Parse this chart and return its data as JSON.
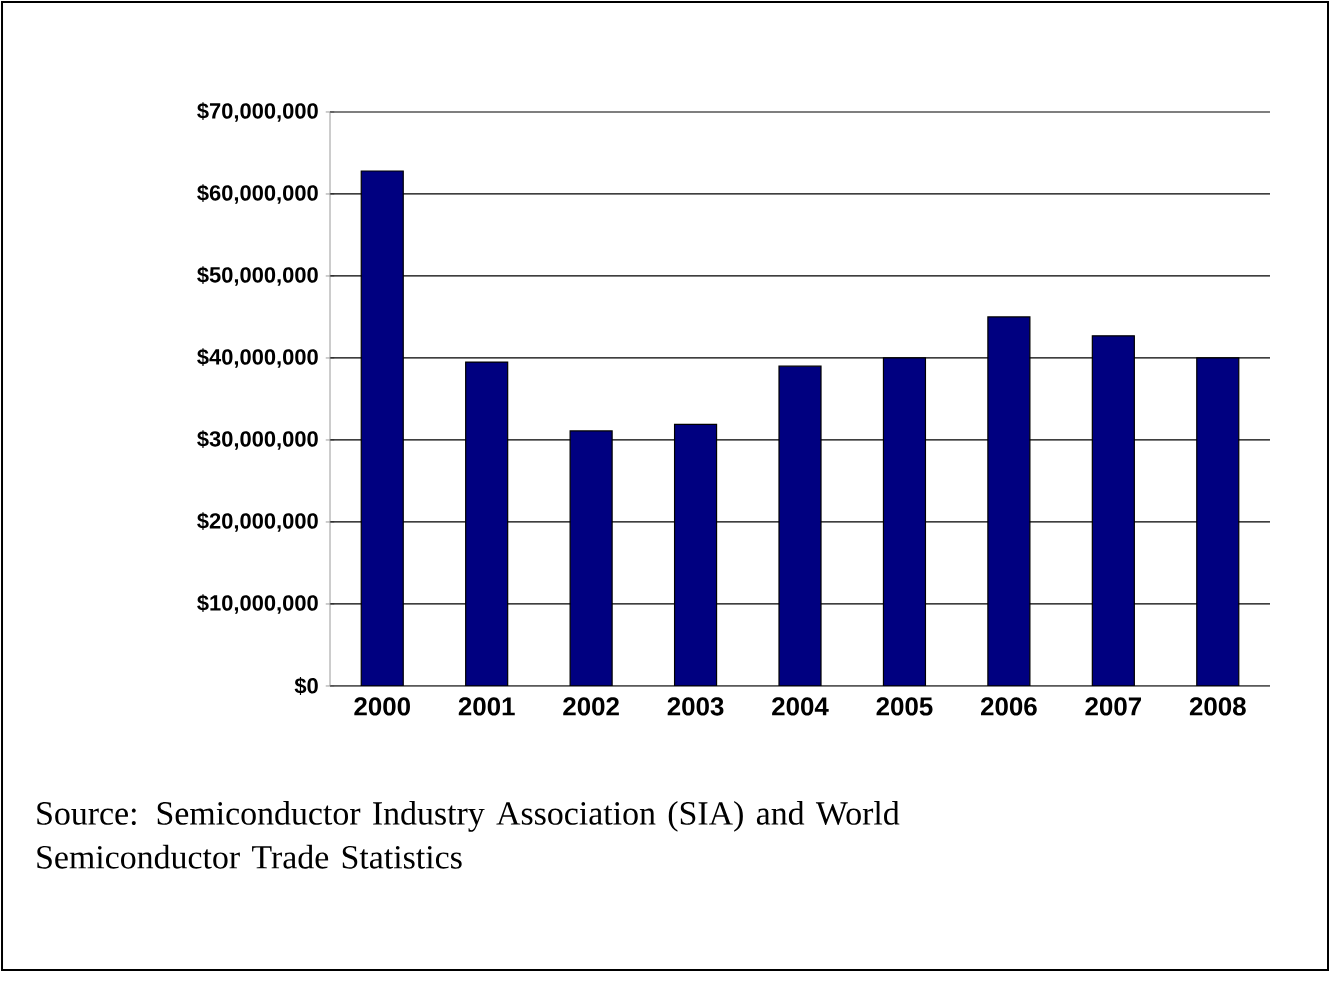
{
  "chart_data": {
    "type": "bar",
    "categories": [
      "2000",
      "2001",
      "2002",
      "2003",
      "2004",
      "2005",
      "2006",
      "2007",
      "2008"
    ],
    "values": [
      62800000,
      39500000,
      31100000,
      31900000,
      39000000,
      40000000,
      45000000,
      42700000,
      40000000
    ],
    "color": "#000080",
    "ylim": [
      0,
      70000000
    ],
    "yticks": [
      {
        "value": 0,
        "label": "$0"
      },
      {
        "value": 10000000,
        "label": "$10,000,000"
      },
      {
        "value": 20000000,
        "label": "$20,000,000"
      },
      {
        "value": 30000000,
        "label": "$30,000,000"
      },
      {
        "value": 40000000,
        "label": "$40,000,000"
      },
      {
        "value": 50000000,
        "label": "$50,000,000"
      },
      {
        "value": 60000000,
        "label": "$60,000,000"
      },
      {
        "value": 70000000,
        "label": "$70,000,000"
      }
    ],
    "grid": "y",
    "annotations": [
      "Source: Semiconductor Industry Association (SIA) and World Semiconductor Trade Statistics"
    ]
  }
}
